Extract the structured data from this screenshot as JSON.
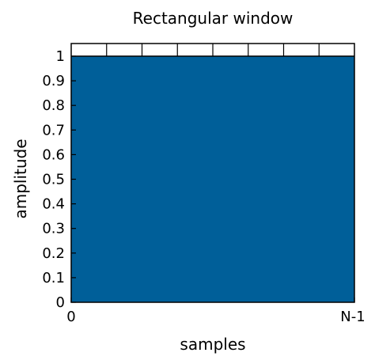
{
  "chart_data": {
    "type": "area",
    "title": "Rectangular window",
    "xlabel": "samples",
    "ylabel": "amplitude",
    "x": [
      "0",
      "N-1"
    ],
    "values": [
      1,
      1
    ],
    "ylim": [
      0,
      1
    ],
    "yticks": [
      0,
      0.1,
      0.2,
      0.3,
      0.4,
      0.5,
      0.6,
      0.7,
      0.8,
      0.9,
      1
    ],
    "ytick_labels": [
      "0",
      "0.1",
      "0.2",
      "0.3",
      "0.4",
      "0.5",
      "0.6",
      "0.7",
      "0.8",
      "0.9",
      "1"
    ],
    "xtick_labels": [
      "0",
      "N-1"
    ],
    "grid": false,
    "colors": {
      "fill": "#005f99",
      "axes": "#000000",
      "background": "#ffffff"
    }
  }
}
